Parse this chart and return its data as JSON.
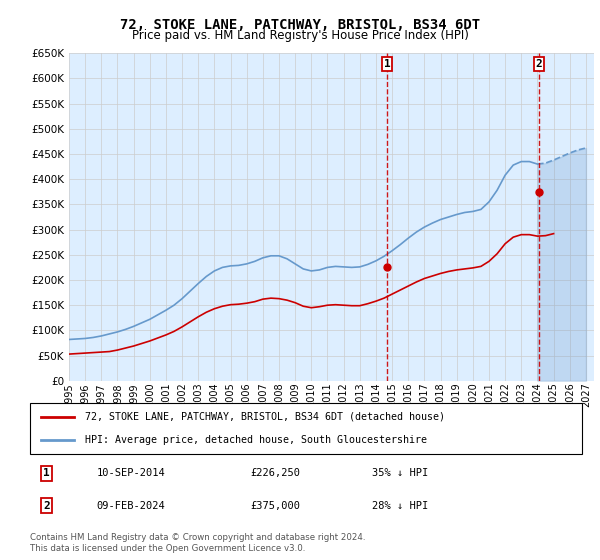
{
  "title": "72, STOKE LANE, PATCHWAY, BRISTOL, BS34 6DT",
  "subtitle": "Price paid vs. HM Land Registry's House Price Index (HPI)",
  "legend_line1": "72, STOKE LANE, PATCHWAY, BRISTOL, BS34 6DT (detached house)",
  "legend_line2": "HPI: Average price, detached house, South Gloucestershire",
  "annotation1_date": "10-SEP-2014",
  "annotation1_price": "£226,250",
  "annotation1_pct": "35% ↓ HPI",
  "annotation2_date": "09-FEB-2024",
  "annotation2_price": "£375,000",
  "annotation2_pct": "28% ↓ HPI",
  "footer": "Contains HM Land Registry data © Crown copyright and database right 2024.\nThis data is licensed under the Open Government Licence v3.0.",
  "red_color": "#cc0000",
  "blue_color": "#6699cc",
  "marker_box_color": "#cc0000",
  "vline_color": "#cc0000",
  "grid_color": "#cccccc",
  "bg_color": "#ddeeff",
  "ylim": [
    0,
    650000
  ],
  "ytick_step": 50000,
  "xmin": 1995.0,
  "xmax": 2027.5,
  "sale1_x": 2014.69,
  "sale1_y": 226250,
  "sale2_x": 2024.1,
  "sale2_y": 375000,
  "hpi_x": [
    1995.0,
    1995.5,
    1996.0,
    1996.5,
    1997.0,
    1997.5,
    1998.0,
    1998.5,
    1999.0,
    1999.5,
    2000.0,
    2000.5,
    2001.0,
    2001.5,
    2002.0,
    2002.5,
    2003.0,
    2003.5,
    2004.0,
    2004.5,
    2005.0,
    2005.5,
    2006.0,
    2006.5,
    2007.0,
    2007.5,
    2008.0,
    2008.5,
    2009.0,
    2009.5,
    2010.0,
    2010.5,
    2011.0,
    2011.5,
    2012.0,
    2012.5,
    2013.0,
    2013.5,
    2014.0,
    2014.5,
    2015.0,
    2015.5,
    2016.0,
    2016.5,
    2017.0,
    2017.5,
    2018.0,
    2018.5,
    2019.0,
    2019.5,
    2020.0,
    2020.5,
    2021.0,
    2021.5,
    2022.0,
    2022.5,
    2023.0,
    2023.5,
    2024.0,
    2024.5,
    2025.0,
    2025.5,
    2026.0,
    2026.5,
    2027.0
  ],
  "hpi_y": [
    82000,
    83000,
    84000,
    86000,
    89000,
    93000,
    97000,
    102000,
    108000,
    115000,
    122000,
    131000,
    140000,
    150000,
    163000,
    178000,
    193000,
    207000,
    218000,
    225000,
    228000,
    229000,
    232000,
    237000,
    244000,
    248000,
    248000,
    242000,
    232000,
    222000,
    218000,
    220000,
    225000,
    227000,
    226000,
    225000,
    226000,
    231000,
    238000,
    247000,
    258000,
    270000,
    283000,
    295000,
    305000,
    313000,
    320000,
    325000,
    330000,
    334000,
    336000,
    340000,
    355000,
    378000,
    408000,
    428000,
    435000,
    435000,
    430000,
    432000,
    438000,
    445000,
    452000,
    458000,
    462000
  ],
  "red_x": [
    1995.0,
    1995.5,
    1996.0,
    1996.5,
    1997.0,
    1997.5,
    1998.0,
    1998.5,
    1999.0,
    1999.5,
    2000.0,
    2000.5,
    2001.0,
    2001.5,
    2002.0,
    2002.5,
    2003.0,
    2003.5,
    2004.0,
    2004.5,
    2005.0,
    2005.5,
    2006.0,
    2006.5,
    2007.0,
    2007.5,
    2008.0,
    2008.5,
    2009.0,
    2009.5,
    2010.0,
    2010.5,
    2011.0,
    2011.5,
    2012.0,
    2012.5,
    2013.0,
    2013.5,
    2014.0,
    2014.5,
    2015.0,
    2015.5,
    2016.0,
    2016.5,
    2017.0,
    2017.5,
    2018.0,
    2018.5,
    2019.0,
    2019.5,
    2020.0,
    2020.5,
    2021.0,
    2021.5,
    2022.0,
    2022.5,
    2023.0,
    2023.5,
    2024.0,
    2024.5,
    2025.0
  ],
  "red_y": [
    53000,
    54000,
    55000,
    56000,
    57000,
    58000,
    61000,
    65000,
    69000,
    74000,
    79000,
    85000,
    91000,
    98000,
    107000,
    117000,
    127000,
    136000,
    143000,
    148000,
    151000,
    152000,
    154000,
    157000,
    162000,
    164000,
    163000,
    160000,
    155000,
    148000,
    145000,
    147000,
    150000,
    151000,
    150000,
    149000,
    149000,
    153000,
    158000,
    164000,
    172000,
    180000,
    188000,
    196000,
    203000,
    208000,
    213000,
    217000,
    220000,
    222000,
    224000,
    227000,
    237000,
    252000,
    272000,
    285000,
    290000,
    290000,
    287000,
    288000,
    292000
  ],
  "hpi_x_shade_start": 2024.0,
  "hpi_shade_x": [
    2024.0,
    2024.5,
    2025.0,
    2025.5,
    2026.0,
    2026.5,
    2027.0
  ],
  "hpi_shade_y": [
    430000,
    432000,
    438000,
    445000,
    452000,
    458000,
    462000
  ],
  "xticks": [
    1995,
    1996,
    1997,
    1998,
    1999,
    2000,
    2001,
    2002,
    2003,
    2004,
    2005,
    2006,
    2007,
    2008,
    2009,
    2010,
    2011,
    2012,
    2013,
    2014,
    2015,
    2016,
    2017,
    2018,
    2019,
    2020,
    2021,
    2022,
    2023,
    2024,
    2025,
    2026,
    2027
  ]
}
